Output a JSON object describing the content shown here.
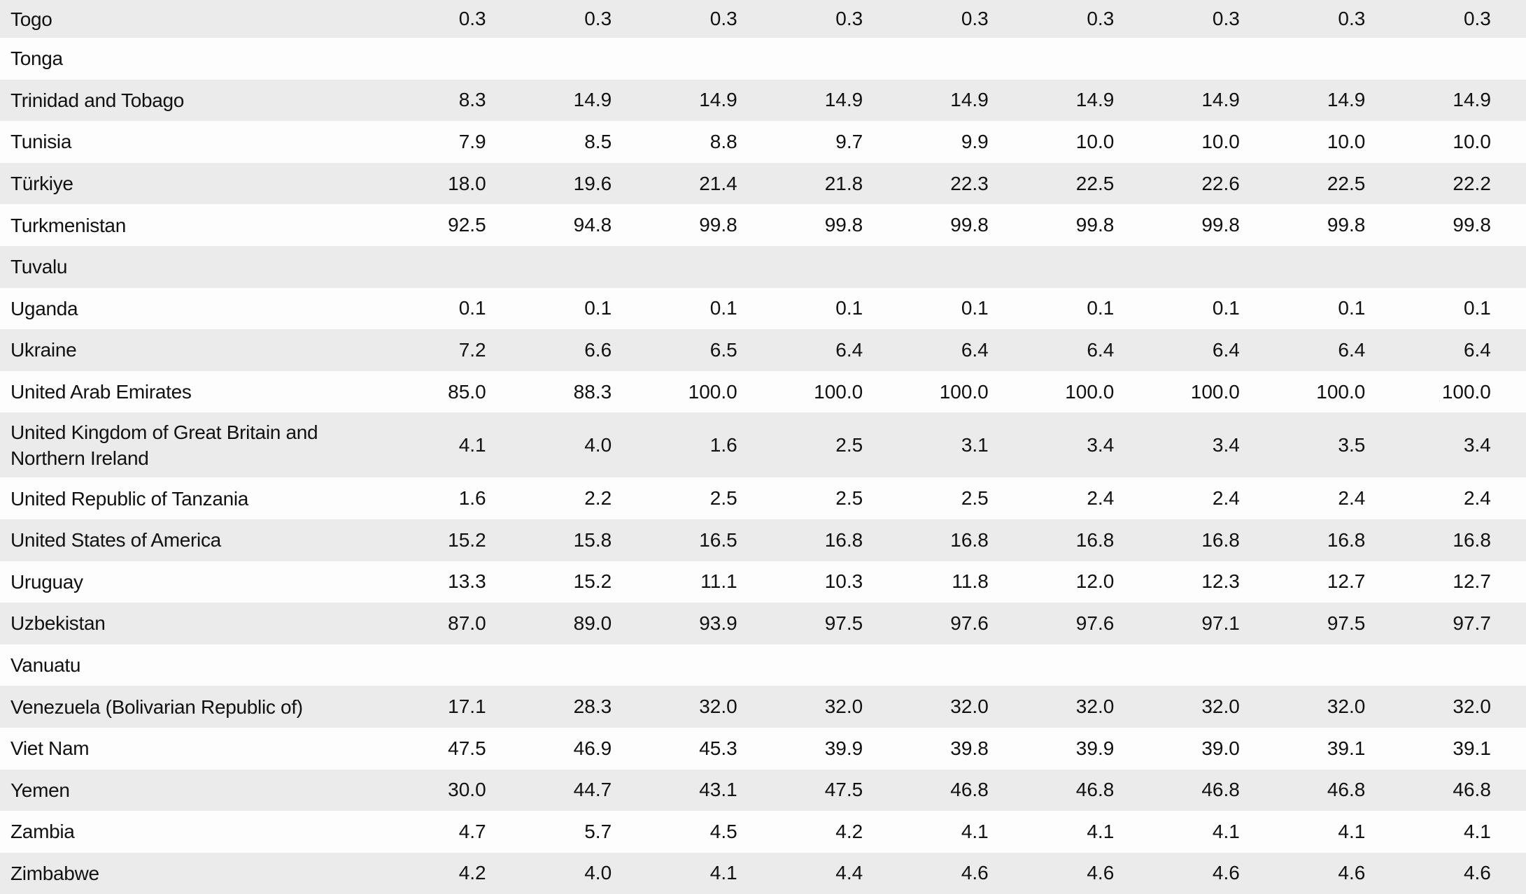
{
  "table": {
    "rows": [
      {
        "country": "Togo",
        "values": [
          "0.3",
          "0.3",
          "0.3",
          "0.3",
          "0.3",
          "0.3",
          "0.3",
          "0.3",
          "0.3"
        ]
      },
      {
        "country": "Tonga",
        "values": [
          "",
          "",
          "",
          "",
          "",
          "",
          "",
          "",
          ""
        ]
      },
      {
        "country": "Trinidad and Tobago",
        "values": [
          "8.3",
          "14.9",
          "14.9",
          "14.9",
          "14.9",
          "14.9",
          "14.9",
          "14.9",
          "14.9"
        ]
      },
      {
        "country": "Tunisia",
        "values": [
          "7.9",
          "8.5",
          "8.8",
          "9.7",
          "9.9",
          "10.0",
          "10.0",
          "10.0",
          "10.0"
        ]
      },
      {
        "country": "Türkiye",
        "values": [
          "18.0",
          "19.6",
          "21.4",
          "21.8",
          "22.3",
          "22.5",
          "22.6",
          "22.5",
          "22.2"
        ]
      },
      {
        "country": "Turkmenistan",
        "values": [
          "92.5",
          "94.8",
          "99.8",
          "99.8",
          "99.8",
          "99.8",
          "99.8",
          "99.8",
          "99.8"
        ]
      },
      {
        "country": "Tuvalu",
        "values": [
          "",
          "",
          "",
          "",
          "",
          "",
          "",
          "",
          ""
        ]
      },
      {
        "country": "Uganda",
        "values": [
          "0.1",
          "0.1",
          "0.1",
          "0.1",
          "0.1",
          "0.1",
          "0.1",
          "0.1",
          "0.1"
        ]
      },
      {
        "country": "Ukraine",
        "values": [
          "7.2",
          "6.6",
          "6.5",
          "6.4",
          "6.4",
          "6.4",
          "6.4",
          "6.4",
          "6.4"
        ]
      },
      {
        "country": "United Arab Emirates",
        "values": [
          "85.0",
          "88.3",
          "100.0",
          "100.0",
          "100.0",
          "100.0",
          "100.0",
          "100.0",
          "100.0"
        ]
      },
      {
        "country": "United Kingdom of Great Britain and Northern Ireland",
        "values": [
          "4.1",
          "4.0",
          "1.6",
          "2.5",
          "3.1",
          "3.4",
          "3.4",
          "3.5",
          "3.4"
        ]
      },
      {
        "country": "United Republic of Tanzania",
        "values": [
          "1.6",
          "2.2",
          "2.5",
          "2.5",
          "2.5",
          "2.4",
          "2.4",
          "2.4",
          "2.4"
        ]
      },
      {
        "country": "United States of America",
        "values": [
          "15.2",
          "15.8",
          "16.5",
          "16.8",
          "16.8",
          "16.8",
          "16.8",
          "16.8",
          "16.8"
        ]
      },
      {
        "country": "Uruguay",
        "values": [
          "13.3",
          "15.2",
          "11.1",
          "10.3",
          "11.8",
          "12.0",
          "12.3",
          "12.7",
          "12.7"
        ]
      },
      {
        "country": "Uzbekistan",
        "values": [
          "87.0",
          "89.0",
          "93.9",
          "97.5",
          "97.6",
          "97.6",
          "97.1",
          "97.5",
          "97.7"
        ]
      },
      {
        "country": "Vanuatu",
        "values": [
          "",
          "",
          "",
          "",
          "",
          "",
          "",
          "",
          ""
        ]
      },
      {
        "country": "Venezuela (Bolivarian Republic of)",
        "values": [
          "17.1",
          "28.3",
          "32.0",
          "32.0",
          "32.0",
          "32.0",
          "32.0",
          "32.0",
          "32.0"
        ]
      },
      {
        "country": "Viet Nam",
        "values": [
          "47.5",
          "46.9",
          "45.3",
          "39.9",
          "39.8",
          "39.9",
          "39.0",
          "39.1",
          "39.1"
        ]
      },
      {
        "country": "Yemen",
        "values": [
          "30.0",
          "44.7",
          "43.1",
          "47.5",
          "46.8",
          "46.8",
          "46.8",
          "46.8",
          "46.8"
        ]
      },
      {
        "country": "Zambia",
        "values": [
          "4.7",
          "5.7",
          "4.5",
          "4.2",
          "4.1",
          "4.1",
          "4.1",
          "4.1",
          "4.1"
        ]
      },
      {
        "country": "Zimbabwe",
        "values": [
          "4.2",
          "4.0",
          "4.1",
          "4.4",
          "4.6",
          "4.6",
          "4.6",
          "4.6",
          "4.6"
        ]
      }
    ]
  },
  "colors": {
    "row_shaded": "#ebebeb",
    "row_plain": "#fdfdfd",
    "text": "#111111"
  }
}
